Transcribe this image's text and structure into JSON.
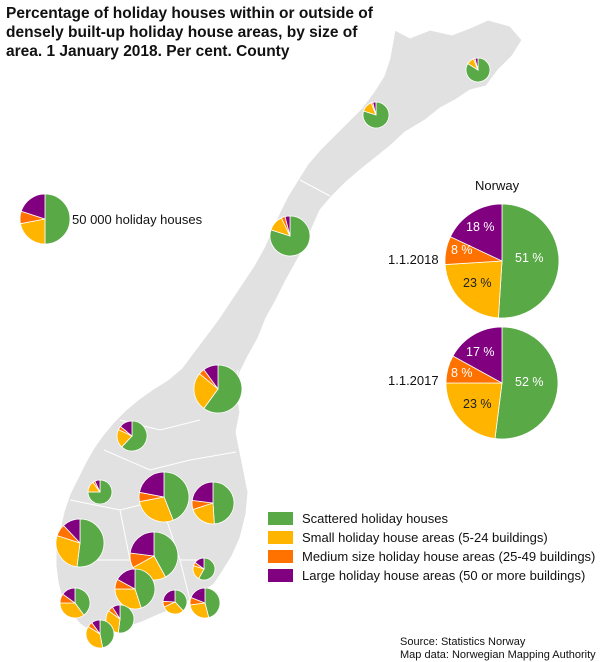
{
  "title": "Percentage of holiday houses within or outside of densely built-up holiday house areas, by size of area. 1 January 2018. Per cent. County",
  "size_reference": {
    "label": "50 000 holiday houses"
  },
  "national": {
    "heading": "Norway",
    "pies": [
      {
        "date": "1.1.2018",
        "labels": [
          "51 %",
          "23 %",
          "8 %",
          "18 %"
        ]
      },
      {
        "date": "1.1.2017",
        "labels": [
          "52 %",
          "23 %",
          "8 %",
          "17 %"
        ]
      }
    ]
  },
  "legend": [
    {
      "label": "Scattered holiday houses",
      "color": "#59a946"
    },
    {
      "label": "Small holiday house areas (5-24 buildings)",
      "color": "#ffb400"
    },
    {
      "label": "Medium size holiday house areas (25-49 buildings)",
      "color": "#ff7200"
    },
    {
      "label": "Large holiday house areas (50 or more buildings)",
      "color": "#800080"
    }
  ],
  "source": {
    "line1": "Source: Statistics Norway",
    "line2": "Map data: Norwegian Mapping Authority"
  },
  "colors": {
    "land": "#e1e1e1",
    "border": "#ffffff",
    "scattered": "#59a946",
    "small": "#ffb400",
    "medium": "#ff7200",
    "large": "#800080"
  },
  "chart_data": [
    {
      "type": "pie",
      "title": "Norway 1.1.2018",
      "series": [
        {
          "name": "Scattered holiday houses",
          "value": 51
        },
        {
          "name": "Small holiday house areas (5-24 buildings)",
          "value": 23
        },
        {
          "name": "Medium size holiday house areas (25-49 buildings)",
          "value": 8
        },
        {
          "name": "Large holiday house areas (50 or more buildings)",
          "value": 18
        }
      ]
    },
    {
      "type": "pie",
      "title": "Norway 1.1.2017",
      "series": [
        {
          "name": "Scattered holiday houses",
          "value": 52
        },
        {
          "name": "Small holiday house areas (5-24 buildings)",
          "value": 23
        },
        {
          "name": "Medium size holiday house areas (25-49 buildings)",
          "value": 8
        },
        {
          "name": "Large holiday house areas (50 or more buildings)",
          "value": 17
        }
      ]
    }
  ],
  "county_pies": [
    {
      "values": [
        84,
        10,
        2,
        4
      ]
    },
    {
      "values": [
        80,
        14,
        2,
        4
      ]
    },
    {
      "values": [
        80,
        13,
        3,
        4
      ]
    },
    {
      "values": [
        60,
        26,
        4,
        10
      ]
    },
    {
      "values": [
        62,
        20,
        4,
        14
      ]
    },
    {
      "values": [
        75,
        15,
        3,
        7
      ]
    },
    {
      "values": [
        44,
        28,
        6,
        22
      ]
    },
    {
      "values": [
        49,
        21,
        7,
        23
      ]
    },
    {
      "values": [
        52,
        28,
        8,
        12
      ]
    },
    {
      "values": [
        42,
        25,
        10,
        23
      ]
    },
    {
      "values": [
        58,
        22,
        5,
        15
      ]
    },
    {
      "values": [
        45,
        30,
        8,
        17
      ]
    },
    {
      "values": [
        40,
        35,
        10,
        15
      ]
    },
    {
      "values": [
        46,
        27,
        8,
        19
      ]
    },
    {
      "values": [
        38,
        30,
        8,
        24
      ]
    },
    {
      "values": [
        52,
        33,
        6,
        9
      ]
    },
    {
      "values": [
        47,
        37,
        6,
        10
      ]
    },
    {
      "values": [
        48,
        30,
        7,
        15
      ]
    }
  ],
  "size_reference_pie": {
    "values": [
      50,
      22,
      8,
      20
    ]
  }
}
